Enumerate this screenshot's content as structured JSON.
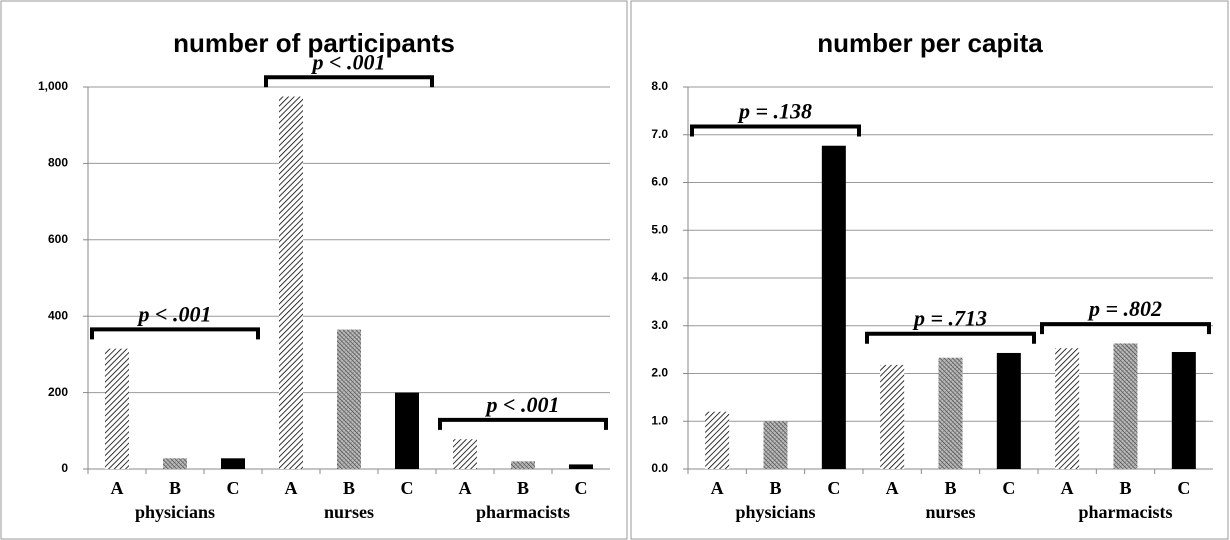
{
  "chart_data": [
    {
      "type": "bar",
      "title": "number of participants",
      "categories": [
        "A",
        "B",
        "C",
        "A",
        "B",
        "C",
        "A",
        "B",
        "C"
      ],
      "groups": [
        {
          "label": "physicians",
          "annotation": "p < .001"
        },
        {
          "label": "nurses",
          "annotation": "p < .001"
        },
        {
          "label": "pharmacists",
          "annotation": "p < .001"
        }
      ],
      "values": [
        315,
        28,
        28,
        975,
        365,
        200,
        78,
        20,
        12
      ],
      "bar_patterns": [
        "diagonal-hatch",
        "dense-hatch",
        "solid"
      ],
      "ylim": [
        0,
        1000
      ],
      "yticks": [
        0,
        200,
        400,
        600,
        800,
        {
          "value": 1000,
          "label": "1,000"
        }
      ],
      "grid": true
    },
    {
      "type": "bar",
      "title": "number per capita",
      "categories": [
        "A",
        "B",
        "C",
        "A",
        "B",
        "C",
        "A",
        "B",
        "C"
      ],
      "groups": [
        {
          "label": "physicians",
          "annotation": "p = .138"
        },
        {
          "label": "nurses",
          "annotation": "p = .713"
        },
        {
          "label": "pharmacists",
          "annotation": "p = .802"
        }
      ],
      "values": [
        1.2,
        1.0,
        6.77,
        2.18,
        2.33,
        2.43,
        2.53,
        2.63,
        2.45
      ],
      "bar_patterns": [
        "diagonal-hatch",
        "dense-hatch",
        "solid"
      ],
      "ylim": [
        0,
        8
      ],
      "yticks": [
        {
          "value": 0,
          "label": "0.0"
        },
        {
          "value": 1,
          "label": "1.0"
        },
        {
          "value": 2,
          "label": "2.0"
        },
        {
          "value": 3,
          "label": "3.0"
        },
        {
          "value": 4,
          "label": "4.0"
        },
        {
          "value": 5,
          "label": "5.0"
        },
        {
          "value": 6,
          "label": "6.0"
        },
        {
          "value": 7,
          "label": "7.0"
        },
        {
          "value": 8,
          "label": "8.0"
        }
      ],
      "grid": true
    }
  ]
}
